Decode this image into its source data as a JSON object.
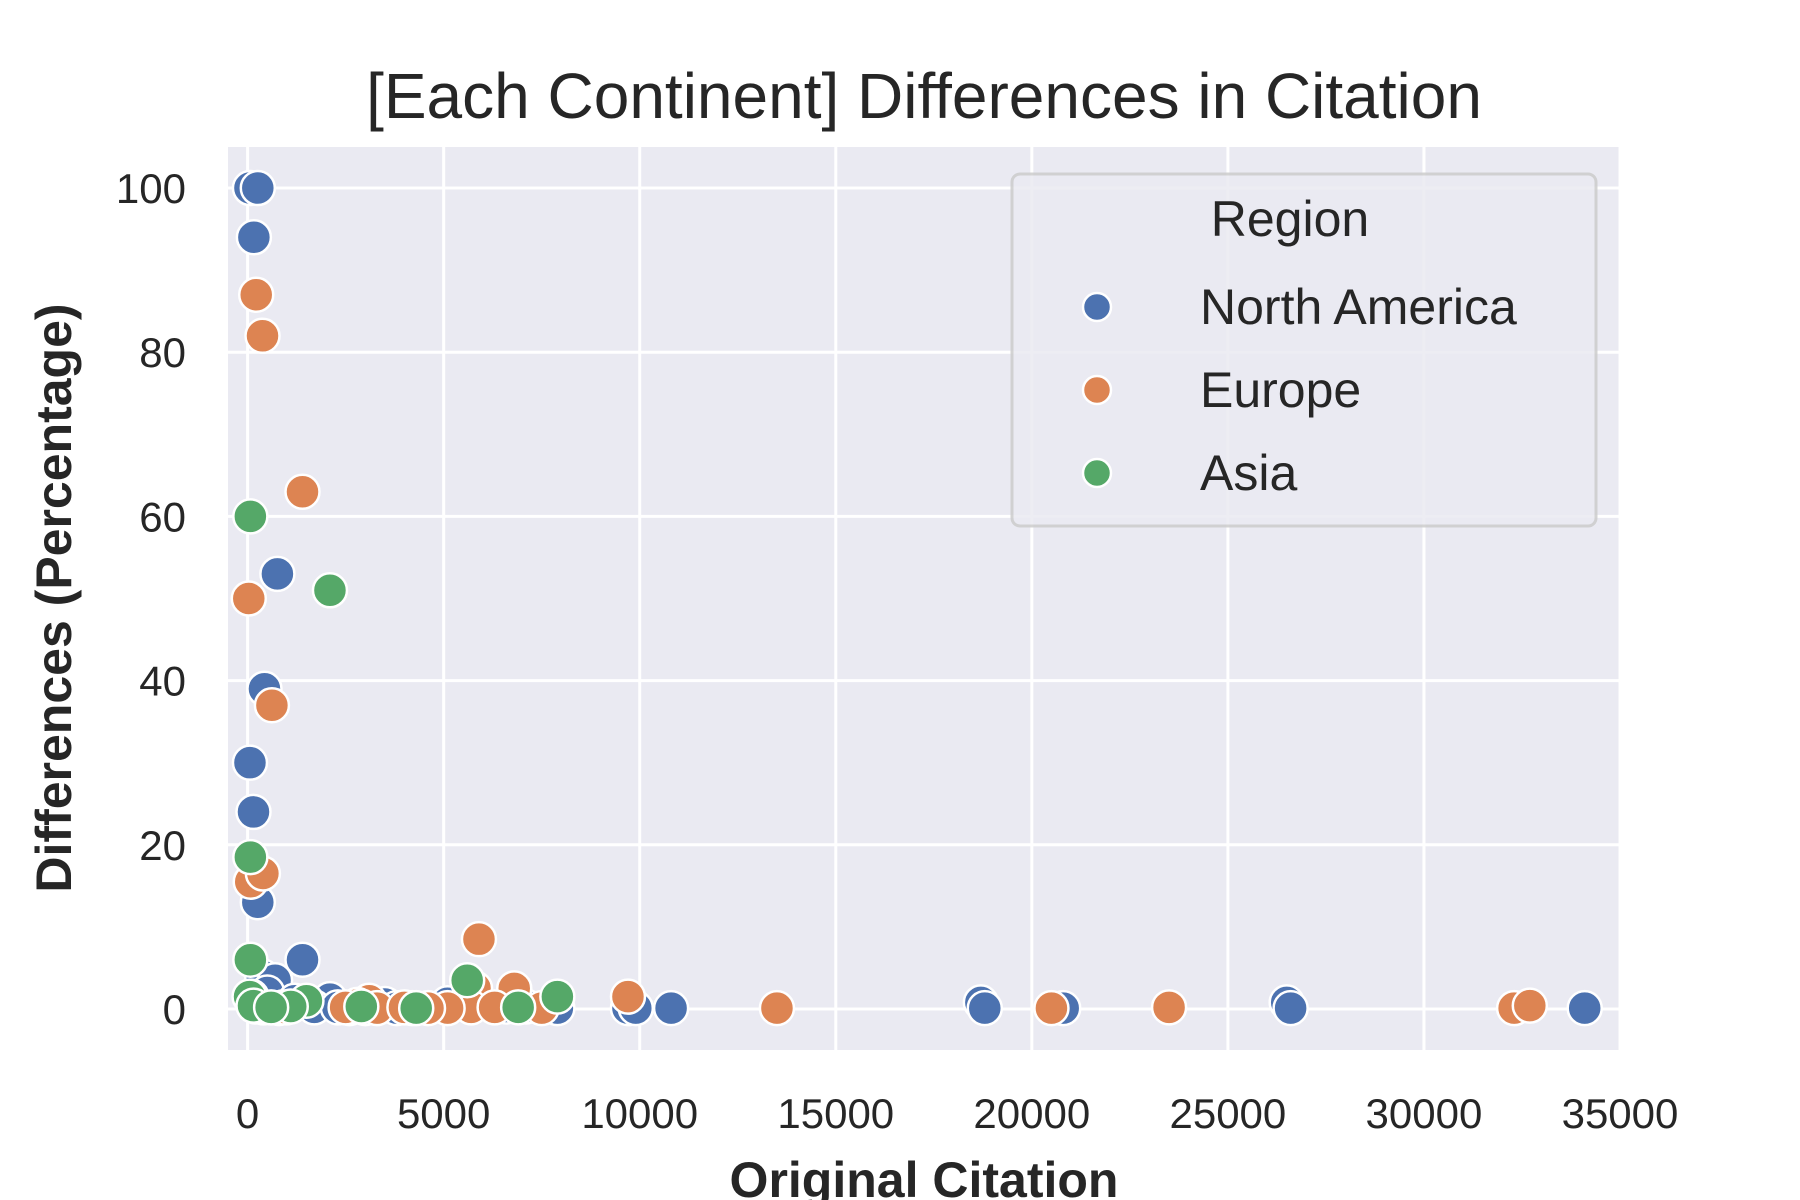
{
  "chart_data": {
    "type": "scatter",
    "title": "[Each Continent] Differences in Citation",
    "xlabel": "Original Citation",
    "ylabel": "Differences (Percentage)",
    "xlim": [
      -500,
      35000
    ],
    "ylim": [
      -5,
      105
    ],
    "xticks": [
      0,
      5000,
      10000,
      15000,
      20000,
      25000,
      30000,
      35000
    ],
    "yticks": [
      0,
      20,
      40,
      60,
      80,
      100
    ],
    "grid": true,
    "legend": {
      "title": "Region",
      "placement": "top-right"
    },
    "series": [
      {
        "name": "North America",
        "color": "#4c72b0",
        "points": [
          [
            60,
            100
          ],
          [
            260,
            100
          ],
          [
            160,
            94
          ],
          [
            430,
            39
          ],
          [
            760,
            53
          ],
          [
            60,
            30
          ],
          [
            150,
            24
          ],
          [
            260,
            13
          ],
          [
            1400,
            6
          ],
          [
            370,
            4
          ],
          [
            700,
            3.5
          ],
          [
            500,
            2
          ],
          [
            100,
            1.5
          ],
          [
            1200,
            1
          ],
          [
            2100,
            1.2
          ],
          [
            3500,
            0.6
          ],
          [
            5100,
            0.7
          ],
          [
            6600,
            0.3
          ],
          [
            7100,
            0.3
          ],
          [
            7900,
            0.1
          ],
          [
            9700,
            0.1
          ],
          [
            9900,
            0.1
          ],
          [
            10800,
            0.1
          ],
          [
            18700,
            0.8
          ],
          [
            18800,
            0.1
          ],
          [
            20800,
            0.1
          ],
          [
            26500,
            0.8
          ],
          [
            26600,
            0.1
          ],
          [
            34100,
            0.1
          ],
          [
            200,
            0.3
          ],
          [
            400,
            0.2
          ],
          [
            800,
            0.1
          ],
          [
            1000,
            0.2
          ],
          [
            1700,
            0.2
          ],
          [
            2300,
            0.2
          ],
          [
            2600,
            0.1
          ],
          [
            3000,
            0.1
          ],
          [
            3800,
            0.1
          ],
          [
            4200,
            0.1
          ]
        ]
      },
      {
        "name": "Europe",
        "color": "#dd8452",
        "points": [
          [
            220,
            87
          ],
          [
            380,
            82
          ],
          [
            1400,
            63
          ],
          [
            30,
            50
          ],
          [
            620,
            37
          ],
          [
            80,
            15.5
          ],
          [
            390,
            16.5
          ],
          [
            5900,
            8.5
          ],
          [
            5800,
            2.5
          ],
          [
            6800,
            2.5
          ],
          [
            9700,
            1.5
          ],
          [
            3100,
            1
          ],
          [
            2800,
            0.5
          ],
          [
            5700,
            0.2
          ],
          [
            5100,
            0.1
          ],
          [
            13500,
            0.1
          ],
          [
            20500,
            0.1
          ],
          [
            23500,
            0.2
          ],
          [
            32300,
            0.1
          ],
          [
            32700,
            0.4
          ],
          [
            300,
            0.4
          ],
          [
            900,
            0.2
          ],
          [
            2500,
            0.2
          ],
          [
            3300,
            0.1
          ],
          [
            4000,
            0.2
          ],
          [
            4600,
            0.1
          ],
          [
            6300,
            0.2
          ],
          [
            7500,
            0.1
          ]
        ]
      },
      {
        "name": "Asia",
        "color": "#55a868",
        "points": [
          [
            70,
            60
          ],
          [
            2100,
            51
          ],
          [
            70,
            18.5
          ],
          [
            70,
            6
          ],
          [
            5600,
            3.5
          ],
          [
            7900,
            1.5
          ],
          [
            1500,
            1
          ],
          [
            6900,
            0.2
          ],
          [
            1100,
            0.3
          ],
          [
            50,
            1.5
          ],
          [
            150,
            0.4
          ],
          [
            600,
            0.2
          ],
          [
            2900,
            0.3
          ],
          [
            4300,
            0.1
          ]
        ]
      }
    ]
  }
}
